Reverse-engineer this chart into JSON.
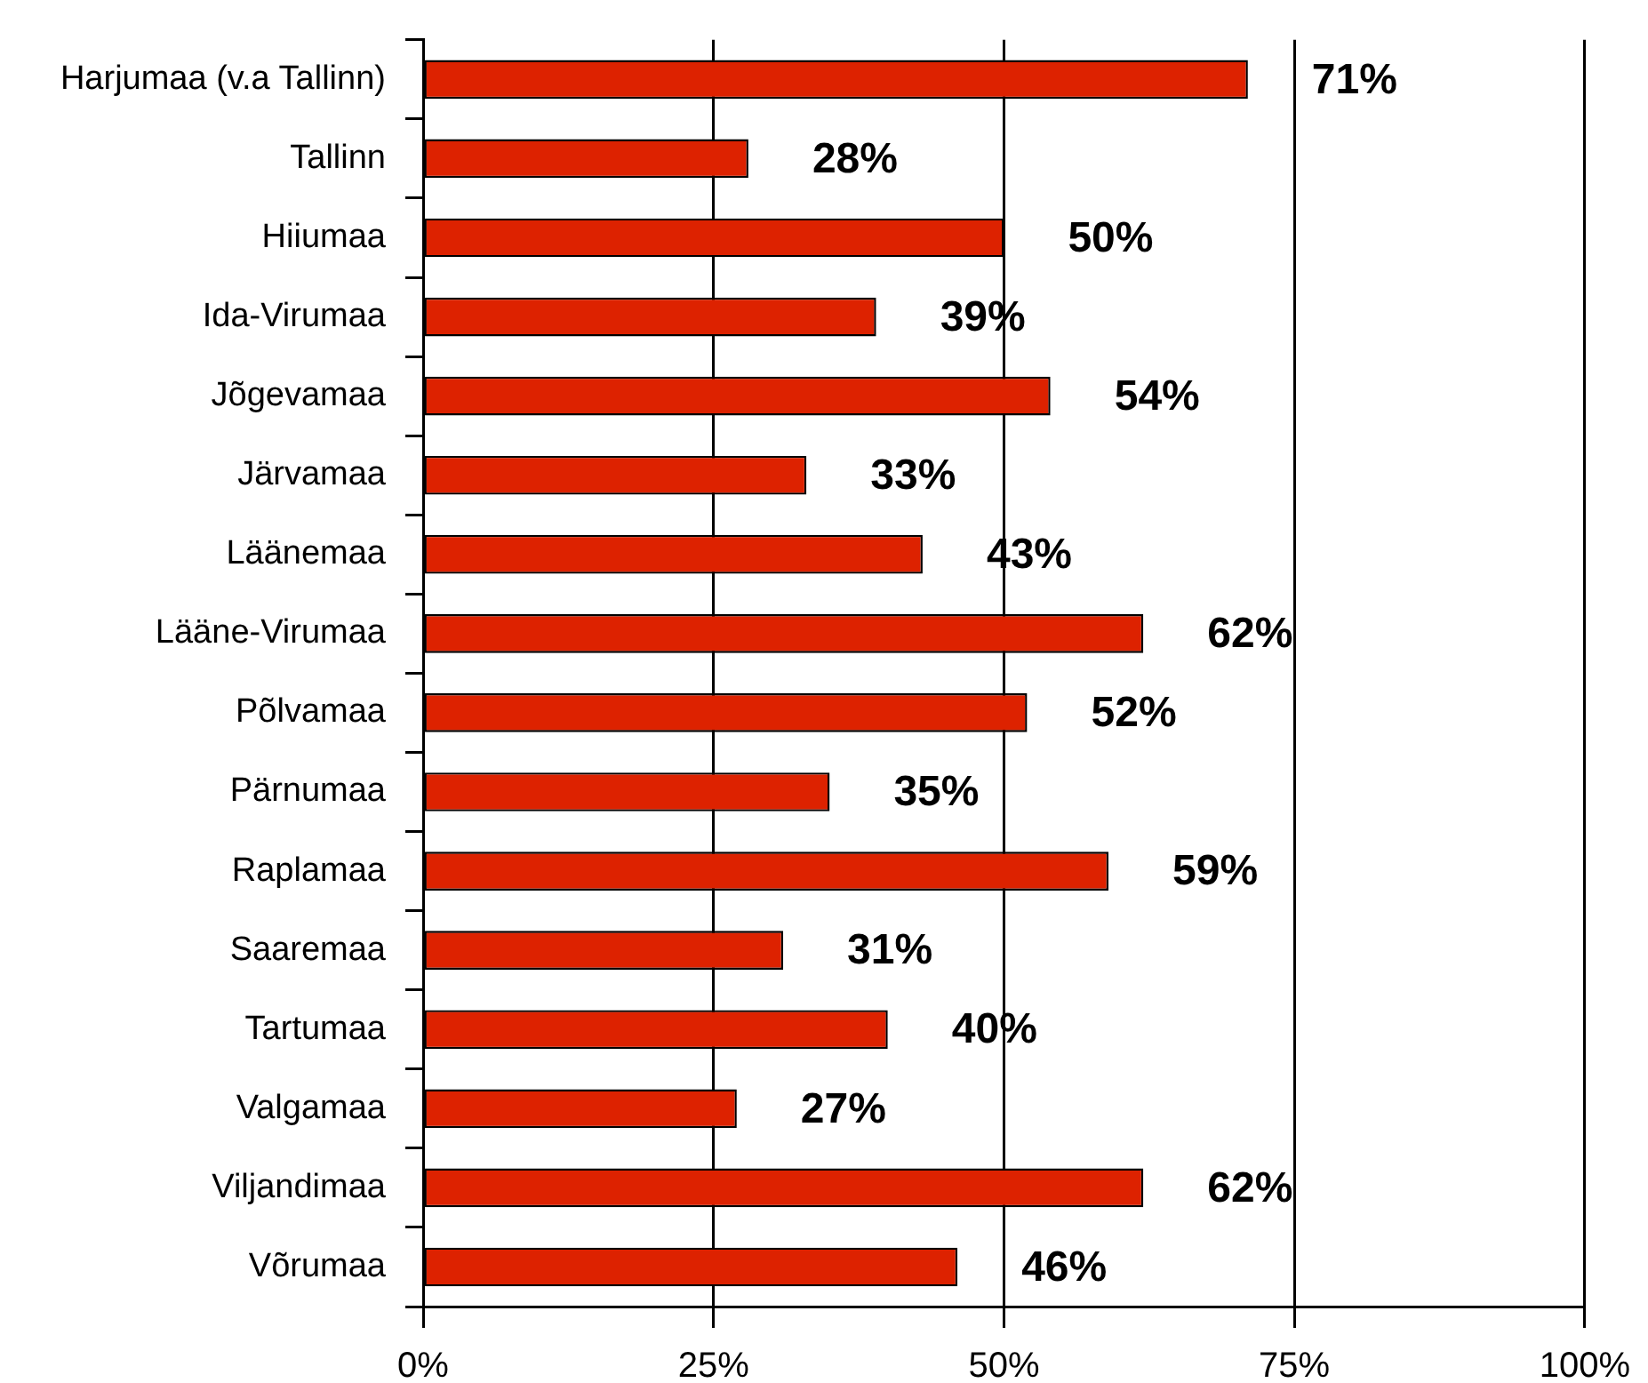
{
  "chart_data": {
    "type": "bar",
    "orientation": "horizontal",
    "categories": [
      "Harjumaa (v.a Tallinn)",
      "Tallinn",
      "Hiiumaa",
      "Ida-Virumaa",
      "Jõgevamaa",
      "Järvamaa",
      "Läänemaa",
      "Lääne-Virumaa",
      "Põlvamaa",
      "Pärnumaa",
      "Raplamaa",
      "Saaremaa",
      "Tartumaa",
      "Valgamaa",
      "Viljandimaa",
      "Võrumaa"
    ],
    "values": [
      71,
      28,
      50,
      39,
      54,
      33,
      43,
      62,
      52,
      35,
      59,
      31,
      40,
      27,
      62,
      46
    ],
    "value_labels": [
      "71%",
      "28%",
      "50%",
      "39%",
      "54%",
      "33%",
      "43%",
      "62%",
      "52%",
      "35%",
      "59%",
      "31%",
      "40%",
      "27%",
      "62%",
      "46%"
    ],
    "color": "#dd2200",
    "xlim": [
      0,
      100
    ],
    "xticks": [
      {
        "value": 0,
        "label": "0%"
      },
      {
        "value": 25,
        "label": "25%"
      },
      {
        "value": 50,
        "label": "50%"
      },
      {
        "value": 75,
        "label": "75%"
      },
      {
        "value": 100,
        "label": "100%"
      }
    ],
    "grid": "x"
  }
}
